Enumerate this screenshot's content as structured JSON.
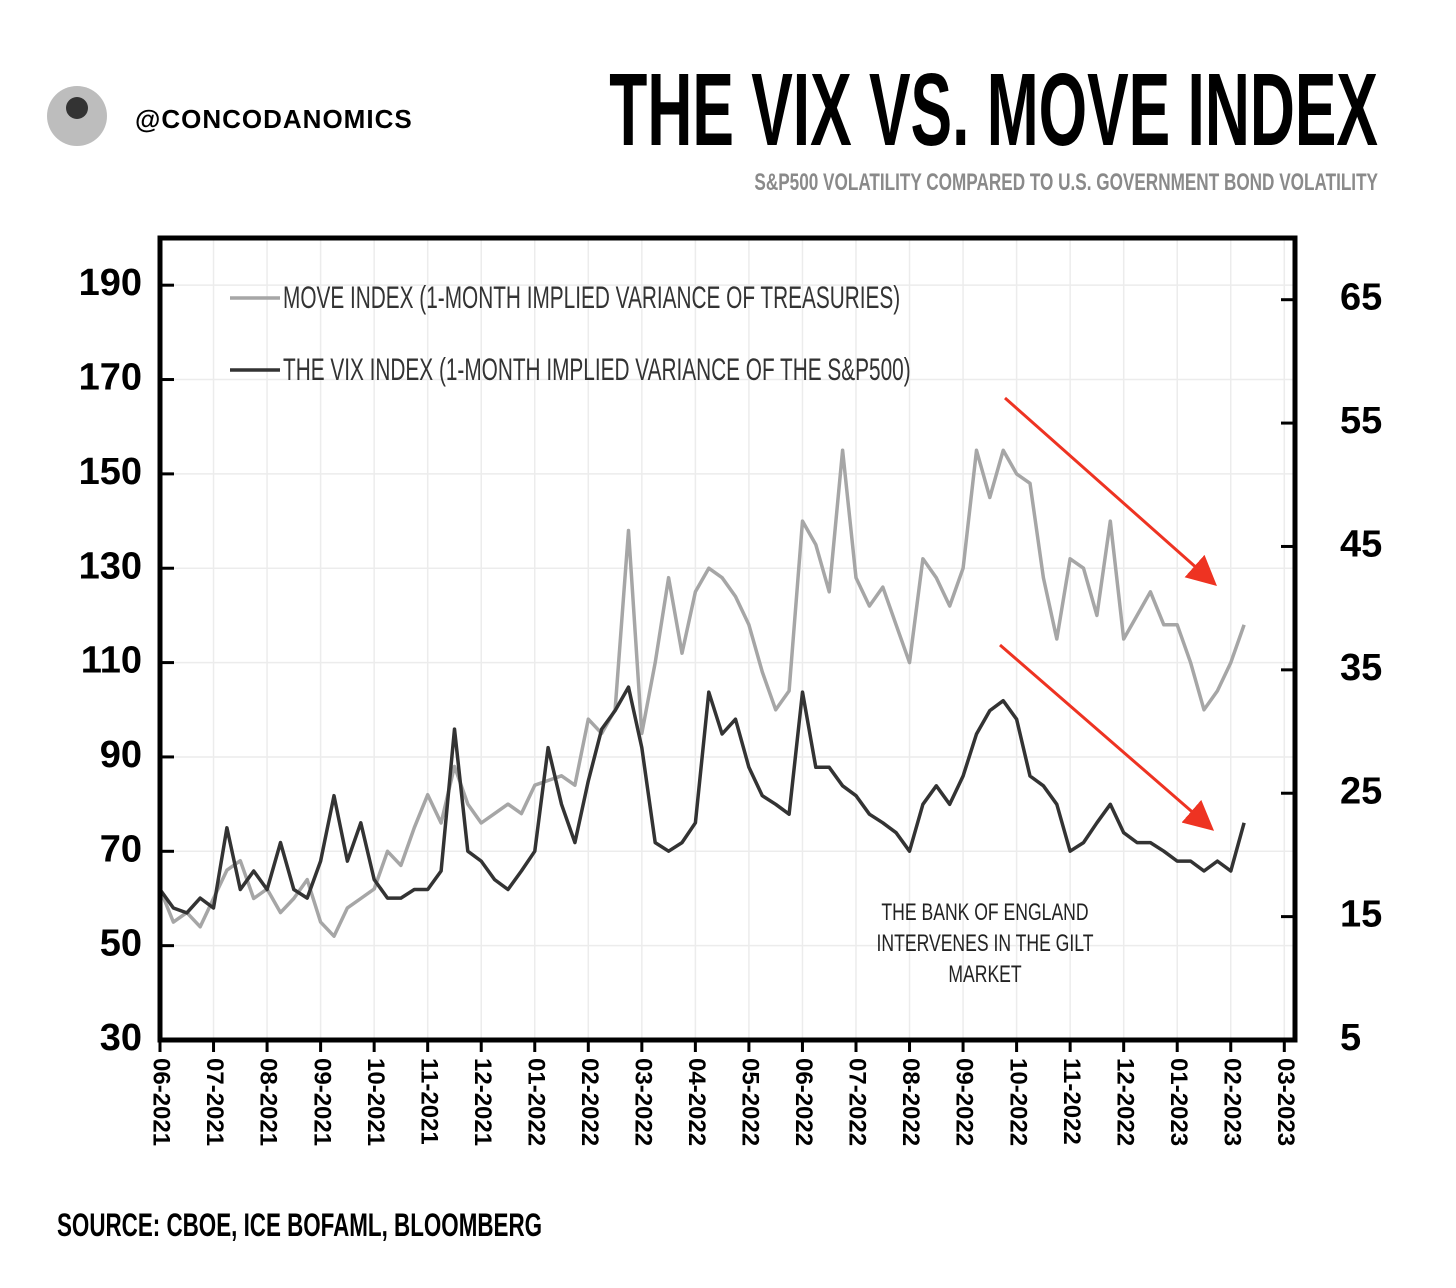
{
  "header": {
    "handle": "@CONCODANOMICS",
    "source": "SOURCE: CBOE, ICE BOFAML, BLOOMBERG"
  },
  "chart_data": {
    "type": "line",
    "title": "THE VIX VS. MOVE INDEX",
    "subtitle": "S&P500 VOLATILITY COMPARED TO U.S. GOVERNMENT BOND VOLATILITY",
    "annotation": [
      "THE BANK OF ENGLAND",
      "INTERVENES IN THE GILT",
      "MARKET"
    ],
    "x": [
      0,
      0.25,
      0.5,
      0.75,
      1,
      1.25,
      1.5,
      1.75,
      2,
      2.25,
      2.5,
      2.75,
      3,
      3.25,
      3.5,
      3.75,
      4,
      4.25,
      4.5,
      4.75,
      5,
      5.25,
      5.5,
      5.75,
      6,
      6.25,
      6.5,
      6.75,
      7,
      7.25,
      7.5,
      7.75,
      8,
      8.25,
      8.5,
      8.75,
      9,
      9.25,
      9.5,
      9.75,
      10,
      10.25,
      10.5,
      10.75,
      11,
      11.25,
      11.5,
      11.75,
      12,
      12.25,
      12.5,
      12.75,
      13,
      13.25,
      13.5,
      13.75,
      14,
      14.25,
      14.5,
      14.75,
      15,
      15.25,
      15.5,
      15.75,
      16,
      16.25,
      16.5,
      16.75,
      17,
      17.25,
      17.5,
      17.75,
      18,
      18.25,
      18.5,
      18.75,
      19,
      19.25,
      19.5,
      19.75,
      20,
      20.25
    ],
    "xlim": [
      0,
      21.2
    ],
    "xticks": [
      {
        "value": 0,
        "label": "06-2021"
      },
      {
        "value": 1,
        "label": "07-2021"
      },
      {
        "value": 2,
        "label": "08-2021"
      },
      {
        "value": 3,
        "label": "09-2021"
      },
      {
        "value": 4,
        "label": "10-2021"
      },
      {
        "value": 5,
        "label": "11-2021"
      },
      {
        "value": 6,
        "label": "12-2021"
      },
      {
        "value": 7,
        "label": "01-2022"
      },
      {
        "value": 8,
        "label": "02-2022"
      },
      {
        "value": 9,
        "label": "03-2022"
      },
      {
        "value": 10,
        "label": "04-2022"
      },
      {
        "value": 11,
        "label": "05-2022"
      },
      {
        "value": 12,
        "label": "06-2022"
      },
      {
        "value": 13,
        "label": "07-2022"
      },
      {
        "value": 14,
        "label": "08-2022"
      },
      {
        "value": 15,
        "label": "09-2022"
      },
      {
        "value": 16,
        "label": "10-2022"
      },
      {
        "value": 17,
        "label": "11-2022"
      },
      {
        "value": 18,
        "label": "12-2022"
      },
      {
        "value": 19,
        "label": "01-2023"
      },
      {
        "value": 20,
        "label": "02-2023"
      },
      {
        "value": 21,
        "label": "03-2023"
      }
    ],
    "ylim": [
      30,
      200
    ],
    "yticks": [
      30,
      50,
      70,
      90,
      110,
      130,
      150,
      170,
      190
    ],
    "y2lim": [
      5,
      70
    ],
    "y2ticks": [
      5,
      15,
      25,
      35,
      45,
      55,
      65
    ],
    "grid": true,
    "legend": "top-left",
    "series": [
      {
        "name": "MOVE INDEX (1-MONTH IMPLIED VARIANCE OF TREASURIES)",
        "color": "#a6a6a6",
        "values": [
          62,
          55,
          57,
          54,
          60,
          66,
          68,
          60,
          62,
          57,
          60,
          64,
          55,
          52,
          58,
          60,
          62,
          70,
          67,
          75,
          82,
          76,
          88,
          80,
          76,
          78,
          80,
          78,
          84,
          85,
          86,
          84,
          98,
          95,
          100,
          138,
          95,
          110,
          128,
          112,
          125,
          130,
          128,
          124,
          118,
          108,
          100,
          104,
          140,
          135,
          125,
          155,
          128,
          122,
          126,
          118,
          110,
          132,
          128,
          122,
          130,
          155,
          145,
          155,
          150,
          148,
          128,
          115,
          132,
          130,
          120,
          140,
          115,
          120,
          125,
          118,
          118,
          110,
          100,
          104,
          110,
          118
        ]
      },
      {
        "name": "THE VIX INDEX (1-MONTH IMPLIED VARIANCE OF THE S&P500)",
        "color": "#333333",
        "axis": "y2",
        "values": [
          17.2,
          15.7,
          15.3,
          16.5,
          15.7,
          22.2,
          17.2,
          18.7,
          17.2,
          21.0,
          17.2,
          16.5,
          19.5,
          24.8,
          19.5,
          22.6,
          18.0,
          16.5,
          16.5,
          17.2,
          17.2,
          18.7,
          30.2,
          20.3,
          19.5,
          18.0,
          17.2,
          18.7,
          20.3,
          28.7,
          24.1,
          21.0,
          26.0,
          30.2,
          31.7,
          33.6,
          28.7,
          21.0,
          20.3,
          21.0,
          22.6,
          33.2,
          29.8,
          31.0,
          27.1,
          24.8,
          24.1,
          23.3,
          33.2,
          27.1,
          27.1,
          25.6,
          24.8,
          23.3,
          22.6,
          21.8,
          20.3,
          24.1,
          25.6,
          24.1,
          26.4,
          29.8,
          31.7,
          32.5,
          31.0,
          26.4,
          25.6,
          24.1,
          20.3,
          21.0,
          22.6,
          24.1,
          21.8,
          21.0,
          21.0,
          20.3,
          19.5,
          19.5,
          18.7,
          19.5,
          18.7,
          22.6
        ]
      }
    ]
  }
}
